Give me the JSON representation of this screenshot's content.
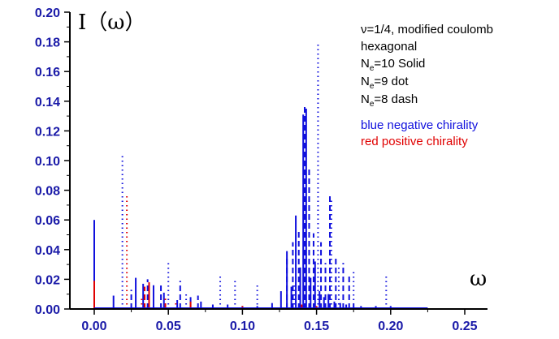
{
  "chart_data": {
    "type": "bar",
    "title": "",
    "xlabel": "ω",
    "ylabel": "I（ω）",
    "xlim": [
      -0.025,
      0.275
    ],
    "ylim": [
      0,
      0.2
    ],
    "x_ticks": [
      "0.00",
      "0.05",
      "0.10",
      "0.15",
      "0.20",
      "0.25"
    ],
    "x_tick_values": [
      0,
      0.05,
      0.1,
      0.15,
      0.2,
      0.25
    ],
    "y_ticks": [
      "0.00",
      "0.02",
      "0.04",
      "0.06",
      "0.08",
      "0.10",
      "0.12",
      "0.14",
      "0.16",
      "0.18",
      "0.20"
    ],
    "y_tick_values": [
      0,
      0.02,
      0.04,
      0.06,
      0.08,
      0.1,
      0.12,
      0.14,
      0.16,
      0.18,
      0.2
    ],
    "grid": false,
    "colors": {
      "negative": "#1010dd",
      "positive": "#e00000",
      "tick_text": "#1a1aa8"
    },
    "annotations": {
      "line1": "ν=1/4, modified coulomb",
      "line2": "hexagonal",
      "line3_prefix": "N",
      "line3_sub": "e",
      "line3_suffix": "=10 Solid",
      "line4_prefix": "N",
      "line4_sub": "e",
      "line4_suffix": "=9 dot",
      "line5_prefix": "N",
      "line5_sub": "e",
      "line5_suffix": "=8 dash",
      "line6": "blue negative chirality",
      "line7": "red positive chirality"
    },
    "series": [
      {
        "style": "solid",
        "chirality": "negative",
        "x": [
          0.0,
          0.013,
          0.028,
          0.033,
          0.04,
          0.047,
          0.056,
          0.065,
          0.072,
          0.08,
          0.09,
          0.1,
          0.11,
          0.12,
          0.126,
          0.13,
          0.133,
          0.136,
          0.139,
          0.141,
          0.143,
          0.146,
          0.149,
          0.152,
          0.155,
          0.158,
          0.162,
          0.166,
          0.17,
          0.175,
          0.18,
          0.19,
          0.2,
          0.21,
          0.22
        ],
        "values": [
          0.06,
          0.009,
          0.021,
          0.017,
          0.016,
          0.011,
          0.006,
          0.008,
          0.005,
          0.003,
          0.003,
          0.002,
          0.002,
          0.004,
          0.012,
          0.039,
          0.015,
          0.063,
          0.028,
          0.131,
          0.135,
          0.021,
          0.032,
          0.012,
          0.008,
          0.01,
          0.005,
          0.004,
          0.003,
          0.003,
          0.002,
          0.002,
          0.002,
          0.001,
          0.001
        ]
      },
      {
        "style": "dot",
        "chirality": "negative",
        "x": [
          0.019,
          0.05,
          0.062,
          0.085,
          0.095,
          0.11,
          0.135,
          0.151,
          0.16,
          0.165,
          0.175,
          0.197
        ],
        "values": [
          0.104,
          0.033,
          0.012,
          0.024,
          0.019,
          0.016,
          0.018,
          0.179,
          0.073,
          0.029,
          0.025,
          0.022
        ]
      },
      {
        "style": "dash",
        "chirality": "negative",
        "x": [
          0.025,
          0.036,
          0.045,
          0.058,
          0.07,
          0.13,
          0.134,
          0.138,
          0.142,
          0.145,
          0.148,
          0.153,
          0.156,
          0.159,
          0.163,
          0.168,
          0.172
        ],
        "values": [
          0.013,
          0.02,
          0.017,
          0.019,
          0.009,
          0.036,
          0.045,
          0.052,
          0.138,
          0.095,
          0.051,
          0.045,
          0.031,
          0.078,
          0.036,
          0.031,
          0.023
        ]
      },
      {
        "style": "solid",
        "chirality": "positive",
        "x": [
          0.0,
          0.037,
          0.065,
          0.1,
          0.14,
          0.15
        ],
        "values": [
          0.019,
          0.018,
          0.005,
          0.002,
          0.003,
          0.002
        ]
      },
      {
        "style": "dot",
        "chirality": "positive",
        "x": [
          0.022,
          0.032,
          0.055
        ],
        "values": [
          0.077,
          0.009,
          0.006
        ]
      },
      {
        "style": "dash",
        "chirality": "positive",
        "x": [
          0.0,
          0.034,
          0.048
        ],
        "values": [
          0.009,
          0.015,
          0.007
        ]
      }
    ]
  }
}
